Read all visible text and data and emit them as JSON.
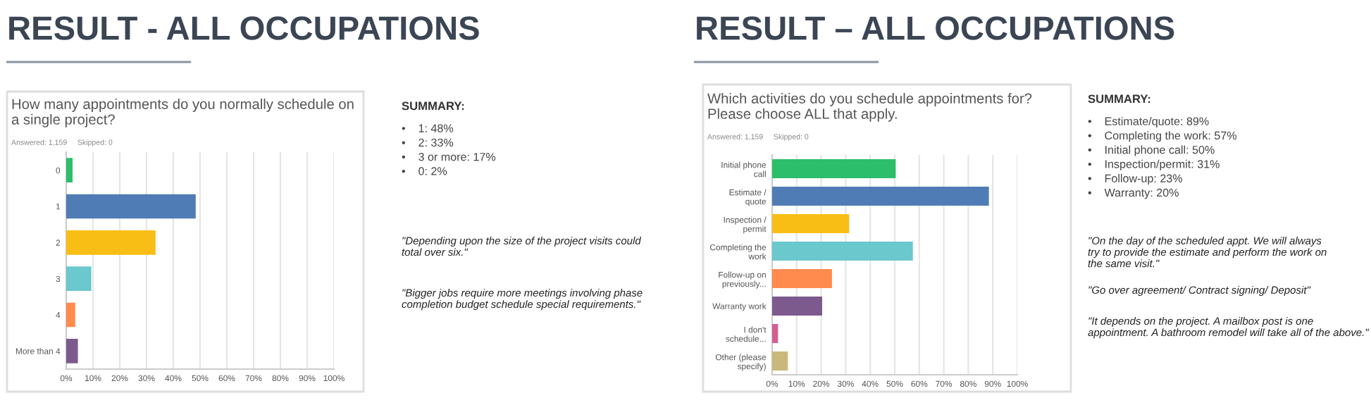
{
  "chart_data": [
    {
      "type": "bar",
      "orientation": "horizontal",
      "title": "RESULT - ALL OCCUPATIONS",
      "subtitle": "How many appointments do you normally schedule on\na single project?",
      "categories": [
        "0",
        "1",
        "2",
        "3",
        "4",
        "More than 4"
      ],
      "values": [
        2,
        48,
        33,
        9,
        3,
        4
      ],
      "colors": [
        "#2dbe6c",
        "#507cb6",
        "#f9be15",
        "#6bc8cd",
        "#ff8b4f",
        "#7d5a8e"
      ],
      "xlim": [
        0,
        100
      ],
      "xticks": [
        {
          "value": 0,
          "label": "0%"
        },
        {
          "value": 10,
          "label": "10%"
        },
        {
          "value": 20,
          "label": "20%"
        },
        {
          "value": 30,
          "label": "30%"
        },
        {
          "value": 40,
          "label": "40%"
        },
        {
          "value": 50,
          "label": "50%"
        },
        {
          "value": 60,
          "label": "60%"
        },
        {
          "value": 70,
          "label": "70%"
        },
        {
          "value": 80,
          "label": "80%"
        },
        {
          "value": 90,
          "label": "90%"
        },
        {
          "value": 100,
          "label": "100%"
        }
      ],
      "grid": "x",
      "annotations": [
        "Answered: 1,159     Skipped: 0",
        "SUMMARY:",
        "•    1: 48%\n•    2: 33%\n•    3 or more: 17%\n•    0: 2%",
        "\"Depending upon the size of the project visits could\ntotal over six.\"",
        "\"Bigger jobs require more meetings involving phase\ncompletion budget schedule special requirements.\""
      ]
    },
    {
      "type": "bar",
      "orientation": "horizontal",
      "title": "RESULT – ALL OCCUPATIONS",
      "subtitle": "Which activities do you schedule appointments for?\nPlease choose ALL that apply.",
      "categories": [
        "Initial phone\ncall",
        "Estimate /\nquote",
        "Inspection /\npermit",
        "Completing the\nwork",
        "Follow-up on\npreviously...",
        "Warranty work",
        "I don't\nschedule...",
        "Other (please\nspecify)"
      ],
      "values": [
        50,
        88,
        31,
        57,
        24,
        20,
        2,
        6
      ],
      "colors": [
        "#2dbe6c",
        "#507cb6",
        "#f9be15",
        "#6bc8cd",
        "#ff8b4f",
        "#7d5a8e",
        "#d25f90",
        "#c9b87c"
      ],
      "xlim": [
        0,
        100
      ],
      "xticks": [
        {
          "value": 0,
          "label": "0%"
        },
        {
          "value": 10,
          "label": "10%"
        },
        {
          "value": 20,
          "label": "20%"
        },
        {
          "value": 30,
          "label": "30%"
        },
        {
          "value": 40,
          "label": "40%"
        },
        {
          "value": 50,
          "label": "50%"
        },
        {
          "value": 60,
          "label": "60%"
        },
        {
          "value": 70,
          "label": "70%"
        },
        {
          "value": 80,
          "label": "80%"
        },
        {
          "value": 90,
          "label": "90%"
        },
        {
          "value": 100,
          "label": "100%"
        }
      ],
      "grid": "x",
      "annotations": [
        "Answered: 1,159     Skipped: 0",
        "SUMMARY:",
        "•    Estimate/quote: 89%\n•    Completing the work: 57%\n•    Initial phone call: 50%\n•    Inspection/permit: 31%\n•    Follow-up: 23%\n•    Warranty: 20%",
        "\"On the day of the scheduled appt. We will always\ntry to provide the estimate and perform the work on\nthe same visit.\"",
        "\"Go over agreement/ Contract signing/ Deposit\"",
        "\"It depends on the project. A mailbox post is one\nappointment. A bathroom remodel will take all of the above.\""
      ]
    }
  ]
}
